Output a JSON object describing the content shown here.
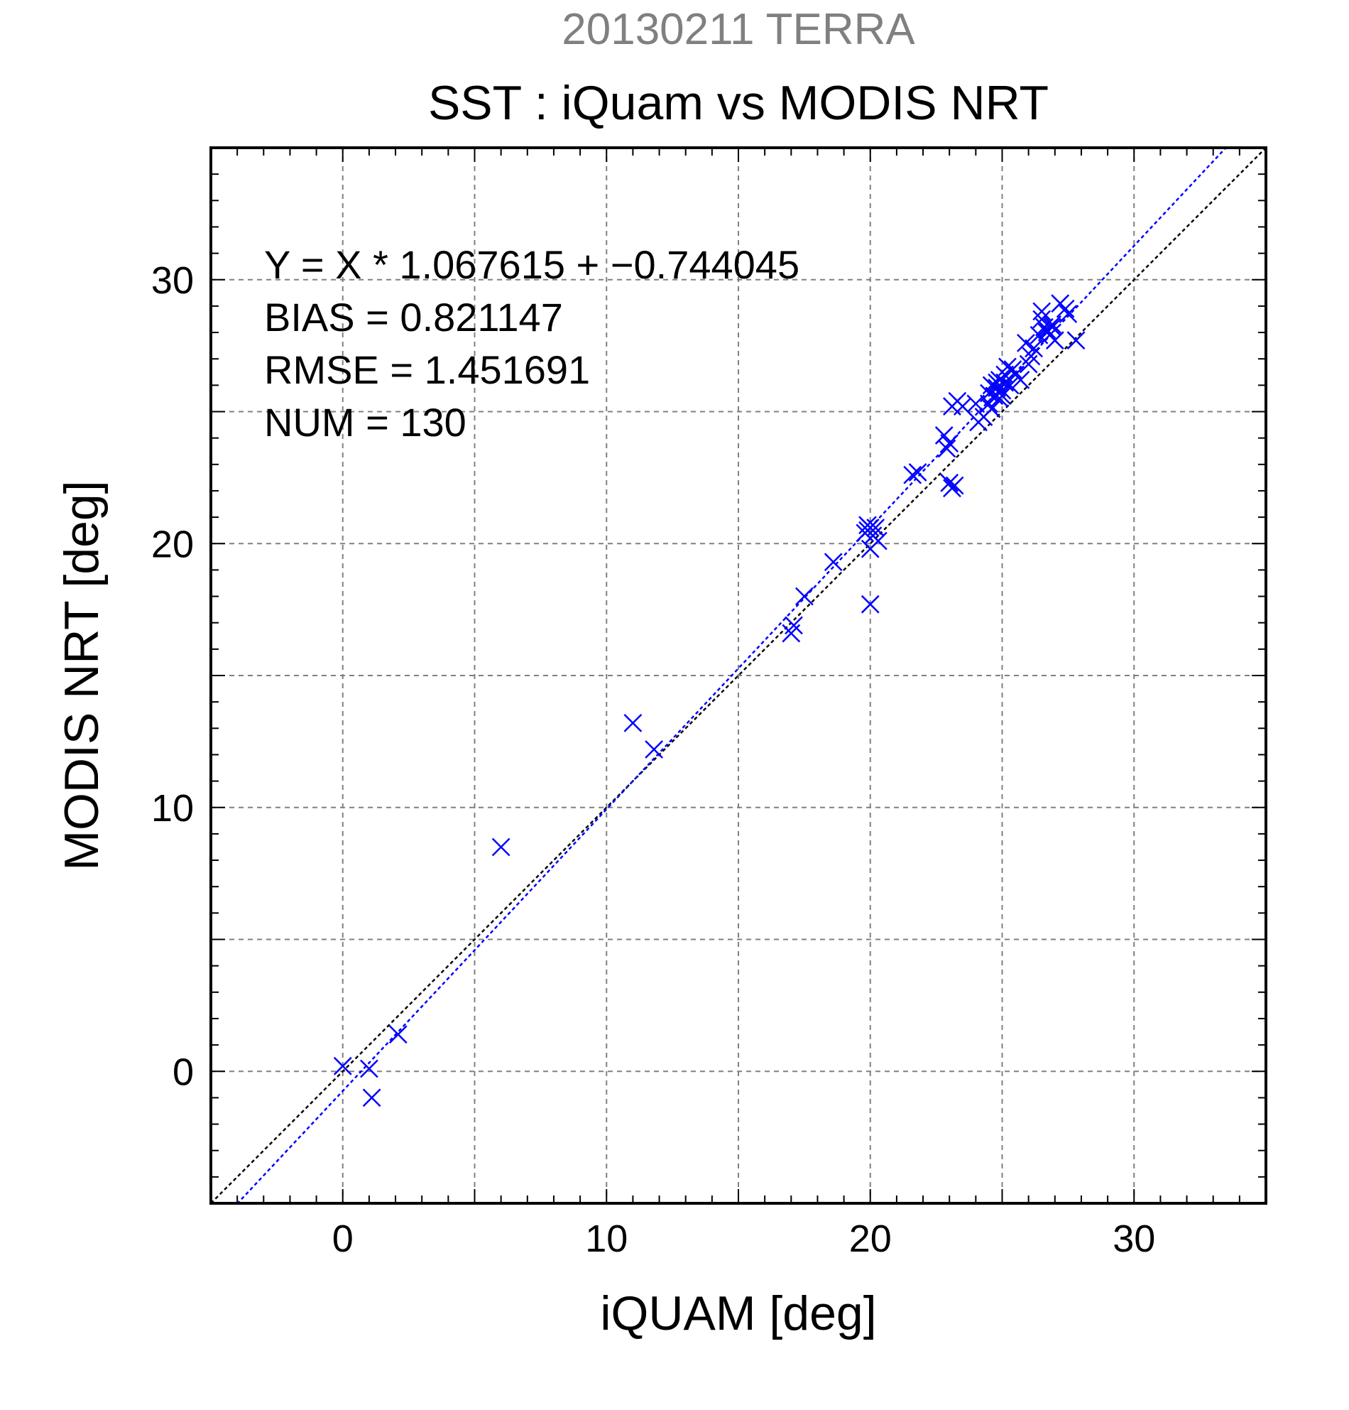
{
  "chart_data": {
    "type": "scatter",
    "supertitle": "20130211 TERRA",
    "title": "SST : iQuam vs MODIS NRT",
    "xlabel": "iQUAM [deg]",
    "ylabel": "MODIS NRT [deg]",
    "xlim": [
      -5,
      35
    ],
    "ylim": [
      -5,
      35
    ],
    "xticks": [
      0,
      10,
      20,
      30
    ],
    "yticks": [
      0,
      10,
      20,
      30
    ],
    "tick_labels_x": [
      "0",
      "10",
      "20",
      "30"
    ],
    "tick_labels_y": [
      "0",
      "10",
      "20",
      "30"
    ],
    "grid": true,
    "stats": [
      "Y = X * 1.067615 + −0.744045",
      "BIAS = 0.821147",
      "RMSE = 1.451691",
      "NUM = 130"
    ],
    "fit": {
      "slope": 1.067615,
      "intercept": -0.744045
    },
    "colors": {
      "supertitle": "#808080",
      "points": "#0000ff",
      "fit_line": "#0000ff",
      "identity_line": "#000000",
      "grid": "#808080"
    },
    "series": [
      {
        "marker": "x",
        "x": [
          0.0,
          1.0,
          1.1,
          2.1,
          6.0,
          11.0,
          11.8,
          17.0,
          17.1,
          17.5,
          18.6,
          19.8,
          19.9,
          20.0,
          20.1,
          20.2,
          19.9,
          20.0,
          20.3,
          20.0,
          21.6,
          21.8,
          22.8,
          22.9,
          23.0,
          23.1,
          23.0,
          23.2,
          23.1,
          23.3,
          23.5,
          24.0,
          24.1,
          24.3,
          24.5,
          24.6,
          24.7,
          24.8,
          24.9,
          25.0,
          25.1,
          25.2,
          24.6,
          24.8,
          25.0,
          25.3,
          25.5,
          25.7,
          25.9,
          26.0,
          26.2,
          26.4,
          26.5,
          26.6,
          26.7,
          26.8,
          26.9,
          27.0,
          26.5,
          26.7,
          26.9,
          27.2,
          27.4,
          27.5,
          27.8,
          24.5,
          24.9,
          25.1,
          25.4,
          26.1
        ],
        "y": [
          0.2,
          0.1,
          -1.0,
          1.4,
          8.5,
          13.2,
          12.2,
          16.6,
          16.9,
          18.0,
          19.3,
          20.4,
          20.7,
          20.6,
          20.3,
          20.6,
          20.5,
          17.7,
          20.1,
          19.8,
          22.6,
          22.7,
          24.1,
          23.6,
          23.8,
          22.1,
          22.3,
          22.2,
          25.2,
          25.4,
          25.2,
          25.3,
          24.6,
          24.8,
          25.7,
          26.0,
          25.6,
          25.9,
          26.2,
          25.8,
          26.4,
          26.7,
          25.1,
          26.1,
          25.6,
          26.0,
          26.4,
          26.2,
          27.6,
          26.8,
          27.4,
          27.9,
          28.5,
          28.2,
          28.0,
          27.9,
          28.2,
          27.7,
          28.8,
          28.1,
          28.3,
          29.1,
          28.9,
          28.7,
          27.7,
          25.3,
          25.5,
          26.1,
          26.6,
          27.1
        ]
      }
    ]
  }
}
